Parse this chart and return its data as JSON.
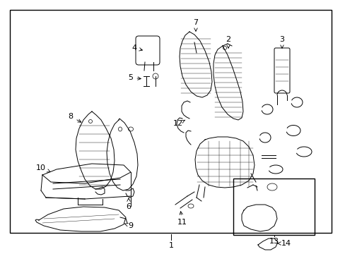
{
  "background_color": "#ffffff",
  "border_color": "#000000",
  "line_color": "#000000",
  "text_color": "#000000",
  "figure_width": 4.89,
  "figure_height": 3.6,
  "dpi": 100
}
